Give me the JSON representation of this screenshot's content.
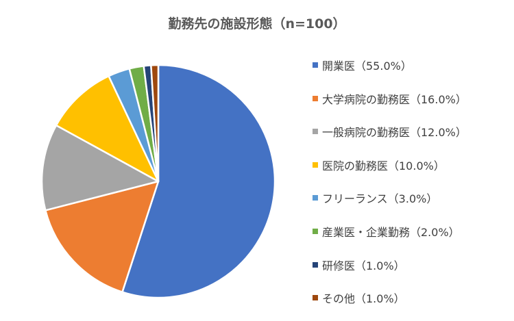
{
  "chart_data": {
    "type": "pie",
    "title": "勤務先の施設形態（n=100）",
    "legend_position": "right",
    "slices": [
      {
        "label": "開業医（55.0%）",
        "value": 55.0,
        "color": "#4472C4"
      },
      {
        "label": "大学病院の勤務医（16.0%）",
        "value": 16.0,
        "color": "#ED7D31"
      },
      {
        "label": "一般病院の勤務医（12.0%）",
        "value": 12.0,
        "color": "#A5A5A5"
      },
      {
        "label": "医院の勤務医（10.0%）",
        "value": 10.0,
        "color": "#FFC000"
      },
      {
        "label": "フリーランス（3.0%）",
        "value": 3.0,
        "color": "#5B9BD5"
      },
      {
        "label": "産業医・企業勤務（2.0%）",
        "value": 2.0,
        "color": "#70AD47"
      },
      {
        "label": "研修医（1.0%）",
        "value": 1.0,
        "color": "#264478"
      },
      {
        "label": "その他（1.0%）",
        "value": 1.0,
        "color": "#9E480E"
      }
    ]
  }
}
